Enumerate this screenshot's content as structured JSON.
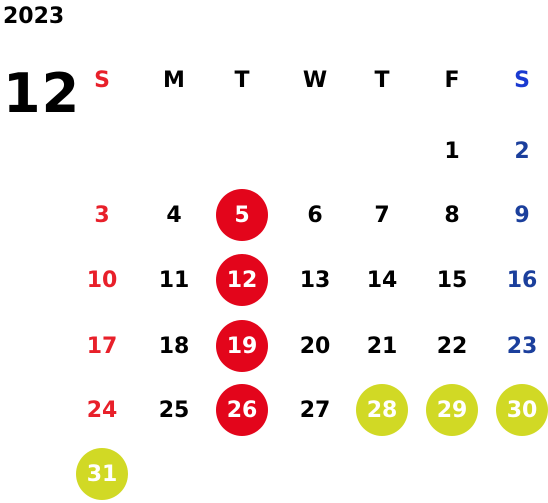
{
  "calendar": {
    "year": "2023",
    "month": "12",
    "colors": {
      "sunday": "#e8202a",
      "saturday": "#1b3f9c",
      "highlight_red": "#e3051b",
      "highlight_yellow": "#d1d925"
    },
    "weekdays": [
      "S",
      "M",
      "T",
      "W",
      "T",
      "F",
      "S"
    ],
    "days": [
      {
        "label": "1",
        "col": 5,
        "row": 0,
        "highlight": ""
      },
      {
        "label": "2",
        "col": 6,
        "row": 0,
        "highlight": ""
      },
      {
        "label": "3",
        "col": 0,
        "row": 1,
        "highlight": ""
      },
      {
        "label": "4",
        "col": 1,
        "row": 1,
        "highlight": ""
      },
      {
        "label": "5",
        "col": 2,
        "row": 1,
        "highlight": "red"
      },
      {
        "label": "6",
        "col": 3,
        "row": 1,
        "highlight": ""
      },
      {
        "label": "7",
        "col": 4,
        "row": 1,
        "highlight": ""
      },
      {
        "label": "8",
        "col": 5,
        "row": 1,
        "highlight": ""
      },
      {
        "label": "9",
        "col": 6,
        "row": 1,
        "highlight": ""
      },
      {
        "label": "10",
        "col": 0,
        "row": 2,
        "highlight": ""
      },
      {
        "label": "11",
        "col": 1,
        "row": 2,
        "highlight": ""
      },
      {
        "label": "12",
        "col": 2,
        "row": 2,
        "highlight": "red"
      },
      {
        "label": "13",
        "col": 3,
        "row": 2,
        "highlight": ""
      },
      {
        "label": "14",
        "col": 4,
        "row": 2,
        "highlight": ""
      },
      {
        "label": "15",
        "col": 5,
        "row": 2,
        "highlight": ""
      },
      {
        "label": "16",
        "col": 6,
        "row": 2,
        "highlight": ""
      },
      {
        "label": "17",
        "col": 0,
        "row": 3,
        "highlight": ""
      },
      {
        "label": "18",
        "col": 1,
        "row": 3,
        "highlight": ""
      },
      {
        "label": "19",
        "col": 2,
        "row": 3,
        "highlight": "red"
      },
      {
        "label": "20",
        "col": 3,
        "row": 3,
        "highlight": ""
      },
      {
        "label": "21",
        "col": 4,
        "row": 3,
        "highlight": ""
      },
      {
        "label": "22",
        "col": 5,
        "row": 3,
        "highlight": ""
      },
      {
        "label": "23",
        "col": 6,
        "row": 3,
        "highlight": ""
      },
      {
        "label": "24",
        "col": 0,
        "row": 4,
        "highlight": ""
      },
      {
        "label": "25",
        "col": 1,
        "row": 4,
        "highlight": ""
      },
      {
        "label": "26",
        "col": 2,
        "row": 4,
        "highlight": "red"
      },
      {
        "label": "27",
        "col": 3,
        "row": 4,
        "highlight": ""
      },
      {
        "label": "28",
        "col": 4,
        "row": 4,
        "highlight": "yellow"
      },
      {
        "label": "29",
        "col": 5,
        "row": 4,
        "highlight": "yellow"
      },
      {
        "label": "30",
        "col": 6,
        "row": 4,
        "highlight": "yellow"
      },
      {
        "label": "31",
        "col": 0,
        "row": 5,
        "highlight": "yellow"
      }
    ]
  }
}
